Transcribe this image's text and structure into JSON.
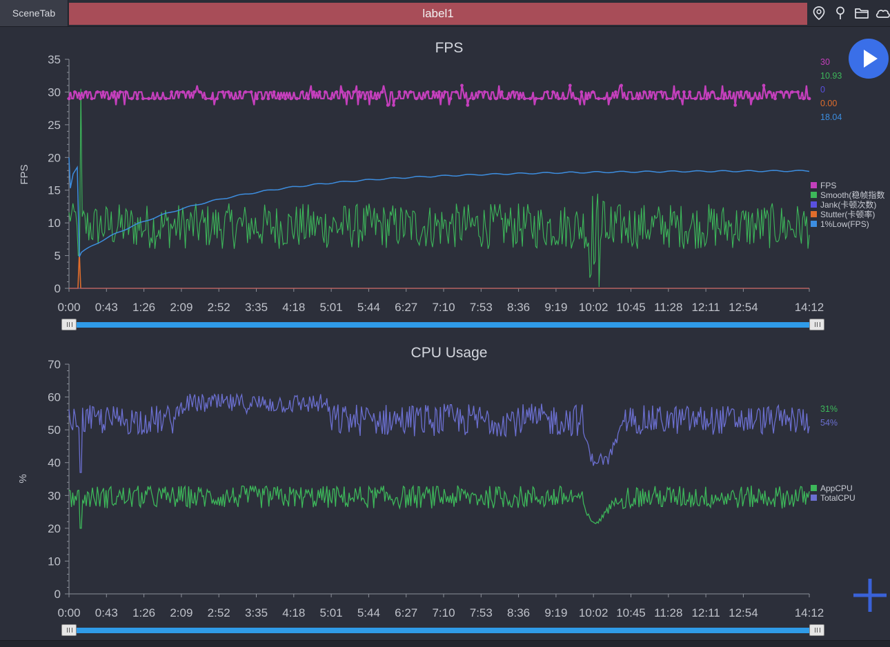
{
  "header": {
    "scene_tab": "SceneTab",
    "label": "label1",
    "icons": [
      "location-pin-icon",
      "map-pin-icon",
      "folder-icon",
      "cloud-icon"
    ]
  },
  "controls": {
    "play_icon": "play-icon",
    "add_icon": "plus-icon"
  },
  "colors": {
    "fps": "#c43fbc",
    "smooth": "#3db85a",
    "jank": "#5a50e0",
    "stutter": "#e06d2c",
    "low1": "#3d8ee0",
    "app_cpu": "#3db85a",
    "total_cpu": "#6b6fd0"
  },
  "chart_data": [
    {
      "type": "line",
      "title": "FPS",
      "ylabel": "FPS",
      "ylim": [
        0,
        35
      ],
      "yticks": [
        "0",
        "5",
        "10",
        "15",
        "20",
        "25",
        "30",
        "35"
      ],
      "xlim_seconds": [
        0,
        852
      ],
      "xticks": [
        "0:00",
        "0:43",
        "1:26",
        "2:09",
        "2:52",
        "3:35",
        "4:18",
        "5:01",
        "5:44",
        "6:27",
        "7:10",
        "7:53",
        "8:36",
        "9:19",
        "10:02",
        "10:45",
        "11:28",
        "12:11",
        "12:54",
        "14:12"
      ],
      "legend_position": "right",
      "series": [
        {
          "name": "FPS",
          "current": "30",
          "approx_level": 29.5,
          "color": "#c43fbc"
        },
        {
          "name": "Smooth(稳帧指数",
          "current": "10.93",
          "approx_level": 9.5,
          "color": "#3db85a"
        },
        {
          "name": "Jank(卡顿次数)",
          "current": "0",
          "approx_level": 0,
          "color": "#5a50e0"
        },
        {
          "name": "Stutter(卡顿率)",
          "current": "0.00",
          "approx_level": 0,
          "color": "#e06d2c"
        },
        {
          "name": "1%Low(FPS)",
          "current": "18.04",
          "approx_level": 18.04,
          "color": "#3d8ee0"
        }
      ]
    },
    {
      "type": "line",
      "title": "CPU Usage",
      "ylabel": "%",
      "ylim": [
        0,
        70
      ],
      "yticks": [
        "0",
        "10",
        "20",
        "30",
        "40",
        "50",
        "60",
        "70"
      ],
      "xlim_seconds": [
        0,
        852
      ],
      "xticks": [
        "0:00",
        "0:43",
        "1:26",
        "2:09",
        "2:52",
        "3:35",
        "4:18",
        "5:01",
        "5:44",
        "6:27",
        "7:10",
        "7:53",
        "8:36",
        "9:19",
        "10:02",
        "10:45",
        "11:28",
        "12:11",
        "12:54",
        "14:12"
      ],
      "legend_position": "right",
      "series": [
        {
          "name": "AppCPU",
          "current": "31%",
          "approx_level": 29.5,
          "color": "#3db85a"
        },
        {
          "name": "TotalCPU",
          "current": "54%",
          "approx_level": 53,
          "color": "#6b6fd0"
        }
      ]
    }
  ]
}
